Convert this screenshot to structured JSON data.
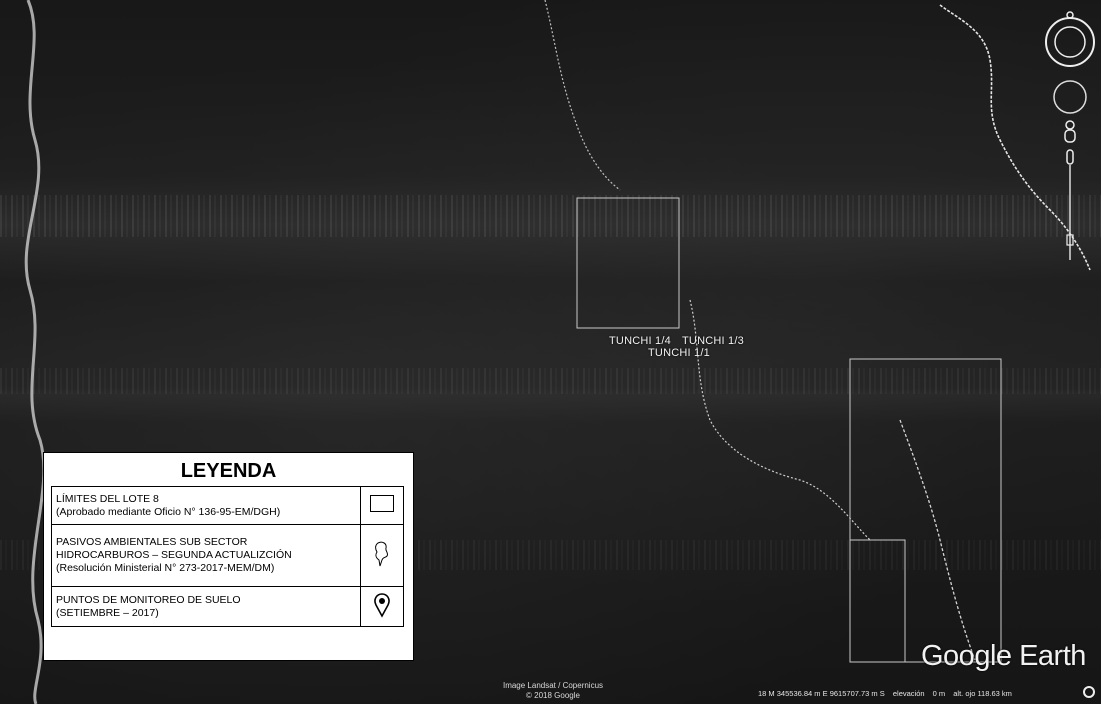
{
  "map": {
    "labels": {
      "tunchi_1_4": "TUNCHI 1/4",
      "tunchi_1_3": "TUNCHI 1/3",
      "tunchi_1_1": "TUNCHI 1/1"
    }
  },
  "legend": {
    "title": "LEYENDA",
    "rows": [
      {
        "lines": [
          "LÍMITES DEL LOTE 8",
          "(Aprobado mediante Oficio N° 136-95-EM/DGH)"
        ],
        "symbol": "rectangle-outline-icon"
      },
      {
        "lines": [
          "PASIVOS AMBIENTALES SUB SECTOR",
          "HIDROCARBUROS – SEGUNDA ACTUALIZCIÓN",
          "(Resolución Ministerial N° 273-2017-MEM/DM)"
        ],
        "symbol": "pushpin-icon"
      },
      {
        "lines": [
          "PUNTOS DE MONITOREO DE SUELO",
          "(SETIEMBRE – 2017)"
        ],
        "symbol": "map-marker-icon"
      }
    ]
  },
  "attribution": {
    "line1": "Image Landsat / Copernicus",
    "line2": "© 2018 Google"
  },
  "logo": "Google Earth",
  "status": {
    "coords": "18 M 345536.84 m E 9615707.73 m S",
    "elevation": "elevación",
    "elevation_value": "0 m",
    "eye_alt": "alt. ojo 118.63 km"
  },
  "colors": {
    "boundary": "#c9c9c9",
    "river": "#e0e0e0",
    "legend_bg": "#ffffff"
  }
}
